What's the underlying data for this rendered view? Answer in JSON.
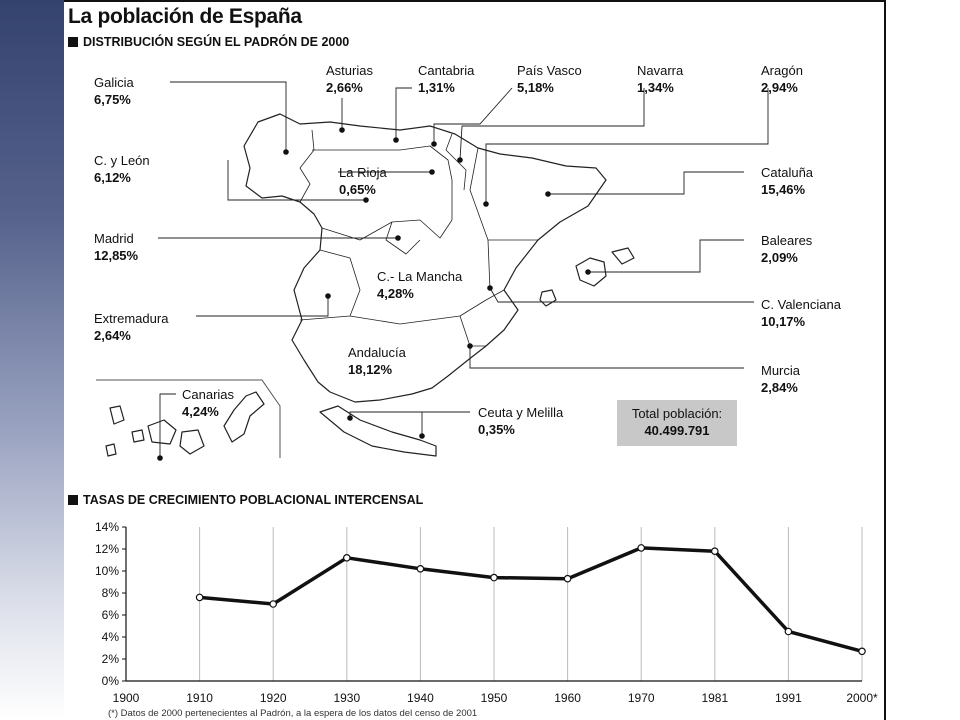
{
  "title": "La población de España",
  "map_section": {
    "heading": "DISTRIBUCIÓN SEGÚN EL PADRÓN DE 2000",
    "regions": [
      {
        "id": "galicia",
        "name": "Galicia",
        "value": "6,75%"
      },
      {
        "id": "asturias",
        "name": "Asturias",
        "value": "2,66%"
      },
      {
        "id": "cantabria",
        "name": "Cantabria",
        "value": "1,31%"
      },
      {
        "id": "pais-vasco",
        "name": "País Vasco",
        "value": "5,18%"
      },
      {
        "id": "navarra",
        "name": "Navarra",
        "value": "1,34%"
      },
      {
        "id": "aragon",
        "name": "Aragón",
        "value": "2,94%"
      },
      {
        "id": "cyleon",
        "name": "C. y León",
        "value": "6,12%"
      },
      {
        "id": "la-rioja",
        "name": "La Rioja",
        "value": "0,65%"
      },
      {
        "id": "cataluna",
        "name": "Cataluña",
        "value": "15,46%"
      },
      {
        "id": "madrid",
        "name": "Madrid",
        "value": "12,85%"
      },
      {
        "id": "baleares",
        "name": "Baleares",
        "value": "2,09%"
      },
      {
        "id": "clamancha",
        "name": "C.- La Mancha",
        "value": "4,28%"
      },
      {
        "id": "extremadura",
        "name": "Extremadura",
        "value": "2,64%"
      },
      {
        "id": "cvalenciana",
        "name": "C. Valenciana",
        "value": "10,17%"
      },
      {
        "id": "andalucia",
        "name": "Andalucía",
        "value": "18,12%"
      },
      {
        "id": "murcia",
        "name": "Murcia",
        "value": "2,84%"
      },
      {
        "id": "canarias",
        "name": "Canarias",
        "value": "4,24%"
      },
      {
        "id": "ceuta",
        "name": "Ceuta y Melilla",
        "value": "0,35%"
      }
    ],
    "total": {
      "label": "Total población:",
      "value": "40.499.791"
    }
  },
  "chart_section": {
    "heading": "TASAS DE CRECIMIENTO POBLACIONAL INTERCENSAL",
    "footnote": "(*) Datos de 2000 pertenecientes al Padrón, a la espera de los datos del censo de 2001"
  },
  "chart_data": {
    "type": "line",
    "title": "TASAS DE CRECIMIENTO POBLACIONAL INTERCENSAL",
    "categories": [
      "1900",
      "1910",
      "1920",
      "1930",
      "1940",
      "1950",
      "1960",
      "1970",
      "1981",
      "1991",
      "2000*"
    ],
    "series": [
      {
        "values": [
          null,
          7.6,
          7.0,
          11.2,
          10.2,
          9.4,
          9.3,
          12.1,
          11.8,
          4.5,
          2.7
        ]
      }
    ],
    "yticks": [
      "0%",
      "2%",
      "4%",
      "6%",
      "8%",
      "10%",
      "12%",
      "14%"
    ],
    "ylim": [
      0,
      14
    ],
    "grid": "vertical",
    "xlabel": "",
    "ylabel": ""
  }
}
